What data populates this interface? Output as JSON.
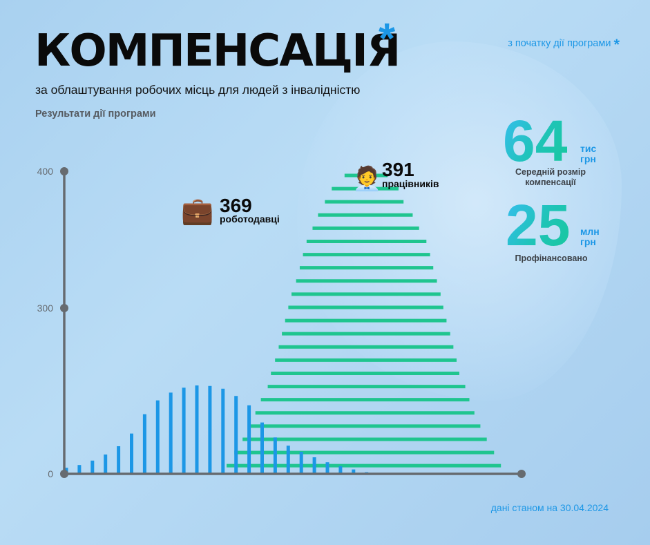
{
  "header": {
    "title": "КОМПЕНСАЦІЯ",
    "title_mark": "*",
    "subtitle": "за облаштування робочих місць для людей з інвалідністю",
    "results_label": "Результати дії програми",
    "since_start": "з початку дії програми",
    "since_start_mark": "*"
  },
  "stats": [
    {
      "value": "64",
      "unit_line1": "тис",
      "unit_line2": "грн",
      "caption_line1": "Середній розмір",
      "caption_line2": "компенсації"
    },
    {
      "value": "25",
      "unit_line1": "млн",
      "unit_line2": "грн",
      "caption_line1": "Профінансовано",
      "caption_line2": ""
    }
  ],
  "footer": {
    "date_note": "дані станом на 30.04.2024"
  },
  "colors": {
    "accent_blue": "#1c97e6",
    "accent_green": "#1fc58f",
    "axis": "#666b70"
  },
  "chart_data": {
    "type": "bar",
    "title": "Результати дії програми",
    "yticks": [
      0,
      300,
      400
    ],
    "ylim": [
      0,
      400
    ],
    "employers": {
      "icon": "💼",
      "value": "369",
      "label": "роботодавці",
      "color": "#1c97e6",
      "bars": [
        {
          "x": 0,
          "y": 11
        },
        {
          "x": 1,
          "y": 16
        },
        {
          "x": 2,
          "y": 24
        },
        {
          "x": 3,
          "y": 35
        },
        {
          "x": 4,
          "y": 50
        },
        {
          "x": 5,
          "y": 73
        },
        {
          "x": 6,
          "y": 108
        },
        {
          "x": 7,
          "y": 133
        },
        {
          "x": 8,
          "y": 147
        },
        {
          "x": 9,
          "y": 156
        },
        {
          "x": 10,
          "y": 160
        },
        {
          "x": 11,
          "y": 159
        },
        {
          "x": 12,
          "y": 154
        },
        {
          "x": 13,
          "y": 141
        },
        {
          "x": 14,
          "y": 124
        },
        {
          "x": 15,
          "y": 93
        },
        {
          "x": 16,
          "y": 66
        },
        {
          "x": 17,
          "y": 51
        },
        {
          "x": 18,
          "y": 40
        },
        {
          "x": 19,
          "y": 30
        },
        {
          "x": 20,
          "y": 21
        },
        {
          "x": 21,
          "y": 14
        },
        {
          "x": 22,
          "y": 8
        },
        {
          "x": 23,
          "y": 3
        }
      ]
    },
    "employees": {
      "icon": "🧑‍💼",
      "value": "391",
      "label": "працівників",
      "color": "#1fc58f",
      "bars": [
        {
          "y": 0.2,
          "x1": 0.355,
          "x2": 0.955
        },
        {
          "y": 1.2,
          "x1": 0.372,
          "x2": 0.94
        },
        {
          "y": 2.2,
          "x1": 0.39,
          "x2": 0.924
        },
        {
          "y": 3.2,
          "x1": 0.407,
          "x2": 0.91
        },
        {
          "y": 4.2,
          "x1": 0.418,
          "x2": 0.897
        },
        {
          "y": 5.2,
          "x1": 0.43,
          "x2": 0.886
        },
        {
          "y": 6.2,
          "x1": 0.445,
          "x2": 0.877
        },
        {
          "y": 7.2,
          "x1": 0.452,
          "x2": 0.864
        },
        {
          "y": 8.2,
          "x1": 0.461,
          "x2": 0.858
        },
        {
          "y": 9.2,
          "x1": 0.469,
          "x2": 0.851
        },
        {
          "y": 10.2,
          "x1": 0.476,
          "x2": 0.844
        },
        {
          "y": 11.2,
          "x1": 0.483,
          "x2": 0.836
        },
        {
          "y": 12.2,
          "x1": 0.49,
          "x2": 0.829
        },
        {
          "y": 13.2,
          "x1": 0.497,
          "x2": 0.823
        },
        {
          "y": 14.2,
          "x1": 0.507,
          "x2": 0.815
        },
        {
          "y": 15.2,
          "x1": 0.515,
          "x2": 0.807
        },
        {
          "y": 16.2,
          "x1": 0.522,
          "x2": 0.8
        },
        {
          "y": 17.2,
          "x1": 0.53,
          "x2": 0.792
        },
        {
          "y": 18.2,
          "x1": 0.543,
          "x2": 0.776
        },
        {
          "y": 19.2,
          "x1": 0.555,
          "x2": 0.762
        },
        {
          "y": 20.2,
          "x1": 0.57,
          "x2": 0.742
        },
        {
          "y": 21.2,
          "x1": 0.585,
          "x2": 0.731
        },
        {
          "y": 22.2,
          "x1": 0.613,
          "x2": 0.707
        }
      ]
    }
  }
}
